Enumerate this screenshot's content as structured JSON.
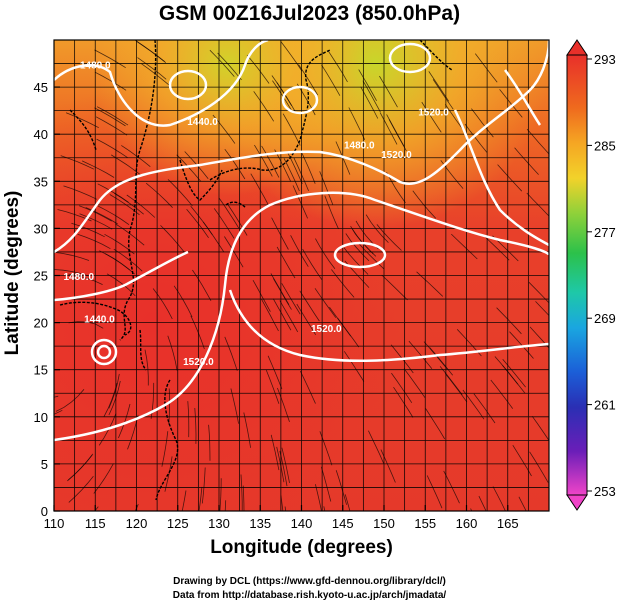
{
  "title": "GSM 00Z16Jul2023 (850.0hPa)",
  "x_axis": {
    "label": "Longitude (degrees)",
    "min": 110,
    "max": 170,
    "ticks": [
      "110",
      "115",
      "120",
      "125",
      "130",
      "135",
      "140",
      "145",
      "150",
      "155",
      "160",
      "165"
    ]
  },
  "y_axis": {
    "label": "Latitude  (degrees)",
    "min": 0,
    "max": 50,
    "ticks": [
      "0",
      "5",
      "10",
      "15",
      "20",
      "25",
      "30",
      "35",
      "40",
      "45"
    ]
  },
  "colorbar": {
    "ticks": [
      "293",
      "285",
      "277",
      "269",
      "261",
      "253"
    ],
    "colors": [
      "#e8302a",
      "#ef6a1e",
      "#f5a623",
      "#f2d22a",
      "#8fd13a",
      "#2cc14a",
      "#1ec8a8",
      "#1aa6e0",
      "#1b5fd8",
      "#2a2fb4",
      "#6a1eb8",
      "#c21cc0",
      "#f044c8"
    ]
  },
  "contour_labels": [
    "1480.0",
    "1440.0",
    "1480.0",
    "1520.0",
    "1520.0",
    "1480.0",
    "1520.0",
    "1520.0",
    "1440.0"
  ],
  "credits": [
    "Drawing by DCL (https://www.gfd-dennou.org/library/dcl/)",
    "Data from http://database.rish.kyoto-u.ac.jp/arch/jmadata/"
  ],
  "chart_data": {
    "type": "heatmap",
    "title": "GSM 00Z16Jul2023 (850.0hPa)",
    "xlabel": "Longitude (degrees)",
    "ylabel": "Latitude  (degrees)",
    "xlim": [
      110,
      170
    ],
    "ylim": [
      0,
      50
    ],
    "colorbar_range": [
      253,
      293
    ],
    "colorbar_ticks": [
      293,
      285,
      277,
      269,
      261,
      253
    ],
    "contours": [
      {
        "label": "1480.0",
        "lon": 115,
        "lat": 47
      },
      {
        "label": "1440.0",
        "lon": 128,
        "lat": 41
      },
      {
        "label": "1480.0",
        "lon": 147,
        "lat": 38.5
      },
      {
        "label": "1520.0",
        "lon": 151.5,
        "lat": 37.5
      },
      {
        "label": "1520.0",
        "lon": 156,
        "lat": 42
      },
      {
        "label": "1480.0",
        "lon": 113,
        "lat": 24.5
      },
      {
        "label": "1520.0",
        "lon": 127.5,
        "lat": 15.5
      },
      {
        "label": "1520.0",
        "lon": 143,
        "lat": 19
      },
      {
        "label": "1440.0",
        "lon": 115.5,
        "lat": 20
      }
    ]
  }
}
